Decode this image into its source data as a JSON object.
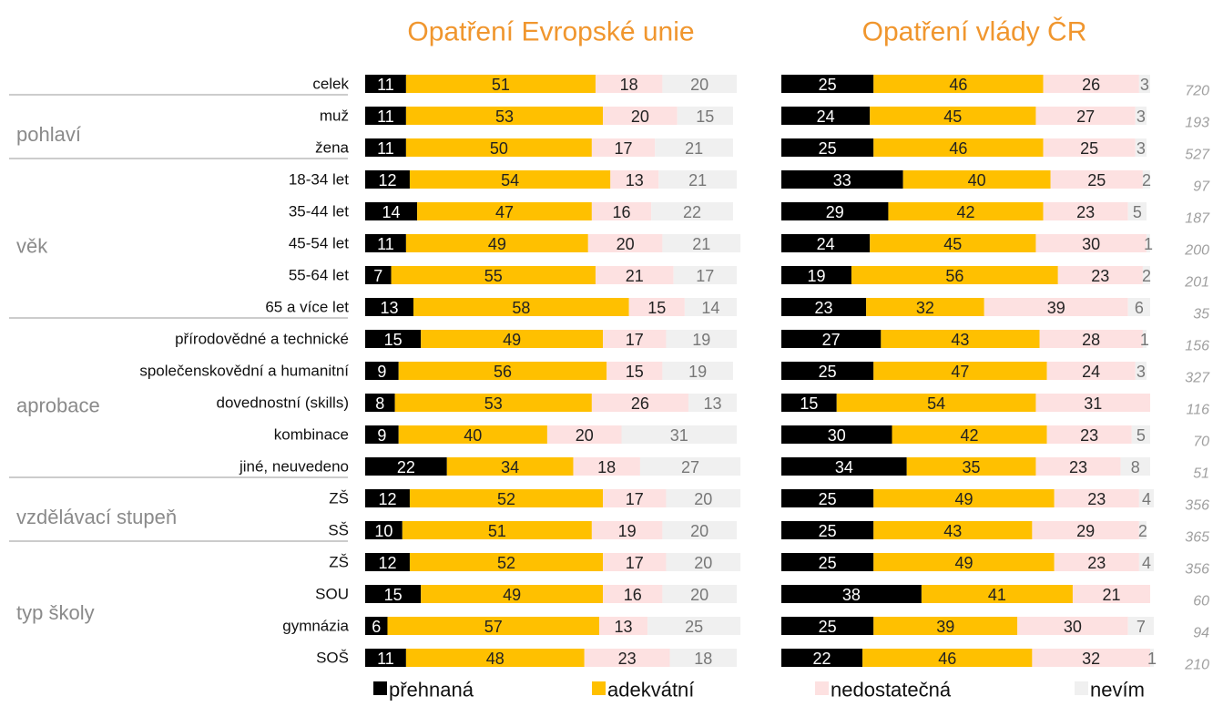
{
  "chart_data": {
    "type": "bar",
    "orientation": "horizontal",
    "stacked": true,
    "series": [
      {
        "name": "přehnaná",
        "color": "#000000"
      },
      {
        "name": "adekvátní",
        "color": "#ffc000"
      },
      {
        "name": "nedostatečná",
        "color": "#fde1e1"
      },
      {
        "name": "nevím",
        "color": "#f0f0f0"
      }
    ],
    "groups": [
      {
        "label": null,
        "categories": [
          "celek"
        ]
      },
      {
        "label": "pohlaví",
        "categories": [
          "muž",
          "žena"
        ]
      },
      {
        "label": "věk",
        "categories": [
          "18-34 let",
          "35-44 let",
          "45-54 let",
          "55-64 let",
          "65 a více let"
        ]
      },
      {
        "label": "aprobace",
        "categories": [
          "přírodovědné a technické",
          "společenskovědní a humanitní",
          "dovednostní (skills)",
          "kombinace",
          "jiné, neuvedeno"
        ]
      },
      {
        "label": "vzdělávací stupeň",
        "categories": [
          "ZŠ",
          "SŠ"
        ]
      },
      {
        "label": "typ školy",
        "categories": [
          "ZŠ",
          "SOU",
          "gymnázia",
          "SOŠ"
        ]
      }
    ],
    "n": [
      720,
      193,
      527,
      97,
      187,
      200,
      201,
      35,
      156,
      327,
      116,
      70,
      51,
      356,
      365,
      356,
      60,
      94,
      210
    ],
    "xlim": [
      0,
      100
    ],
    "panels": [
      {
        "title": "Opatření Evropské unie",
        "series": [
          {
            "values": [
              11,
              11,
              11,
              12,
              14,
              11,
              7,
              13,
              15,
              9,
              8,
              9,
              22,
              12,
              10,
              12,
              15,
              6,
              11
            ]
          },
          {
            "values": [
              51,
              53,
              50,
              54,
              47,
              49,
              55,
              58,
              49,
              56,
              53,
              40,
              34,
              52,
              51,
              52,
              49,
              57,
              48
            ]
          },
          {
            "values": [
              18,
              20,
              17,
              13,
              16,
              20,
              21,
              15,
              17,
              15,
              26,
              20,
              18,
              17,
              19,
              17,
              16,
              13,
              23
            ]
          },
          {
            "values": [
              20,
              15,
              21,
              21,
              22,
              21,
              17,
              14,
              19,
              19,
              13,
              31,
              27,
              20,
              20,
              20,
              20,
              25,
              18
            ]
          }
        ]
      },
      {
        "title": "Opatření vlády ČR",
        "series": [
          {
            "values": [
              25,
              24,
              25,
              33,
              29,
              24,
              19,
              23,
              27,
              25,
              15,
              30,
              34,
              25,
              25,
              25,
              38,
              25,
              22
            ]
          },
          {
            "values": [
              46,
              45,
              46,
              40,
              42,
              45,
              56,
              32,
              43,
              47,
              54,
              42,
              35,
              49,
              43,
              49,
              41,
              39,
              46
            ]
          },
          {
            "values": [
              26,
              27,
              25,
              25,
              23,
              30,
              23,
              39,
              28,
              24,
              31,
              23,
              23,
              23,
              29,
              23,
              21,
              30,
              32
            ]
          },
          {
            "values": [
              3,
              3,
              3,
              2,
              5,
              1,
              2,
              6,
              1,
              3,
              null,
              5,
              8,
              4,
              2,
              4,
              null,
              7,
              1
            ]
          }
        ]
      }
    ]
  }
}
